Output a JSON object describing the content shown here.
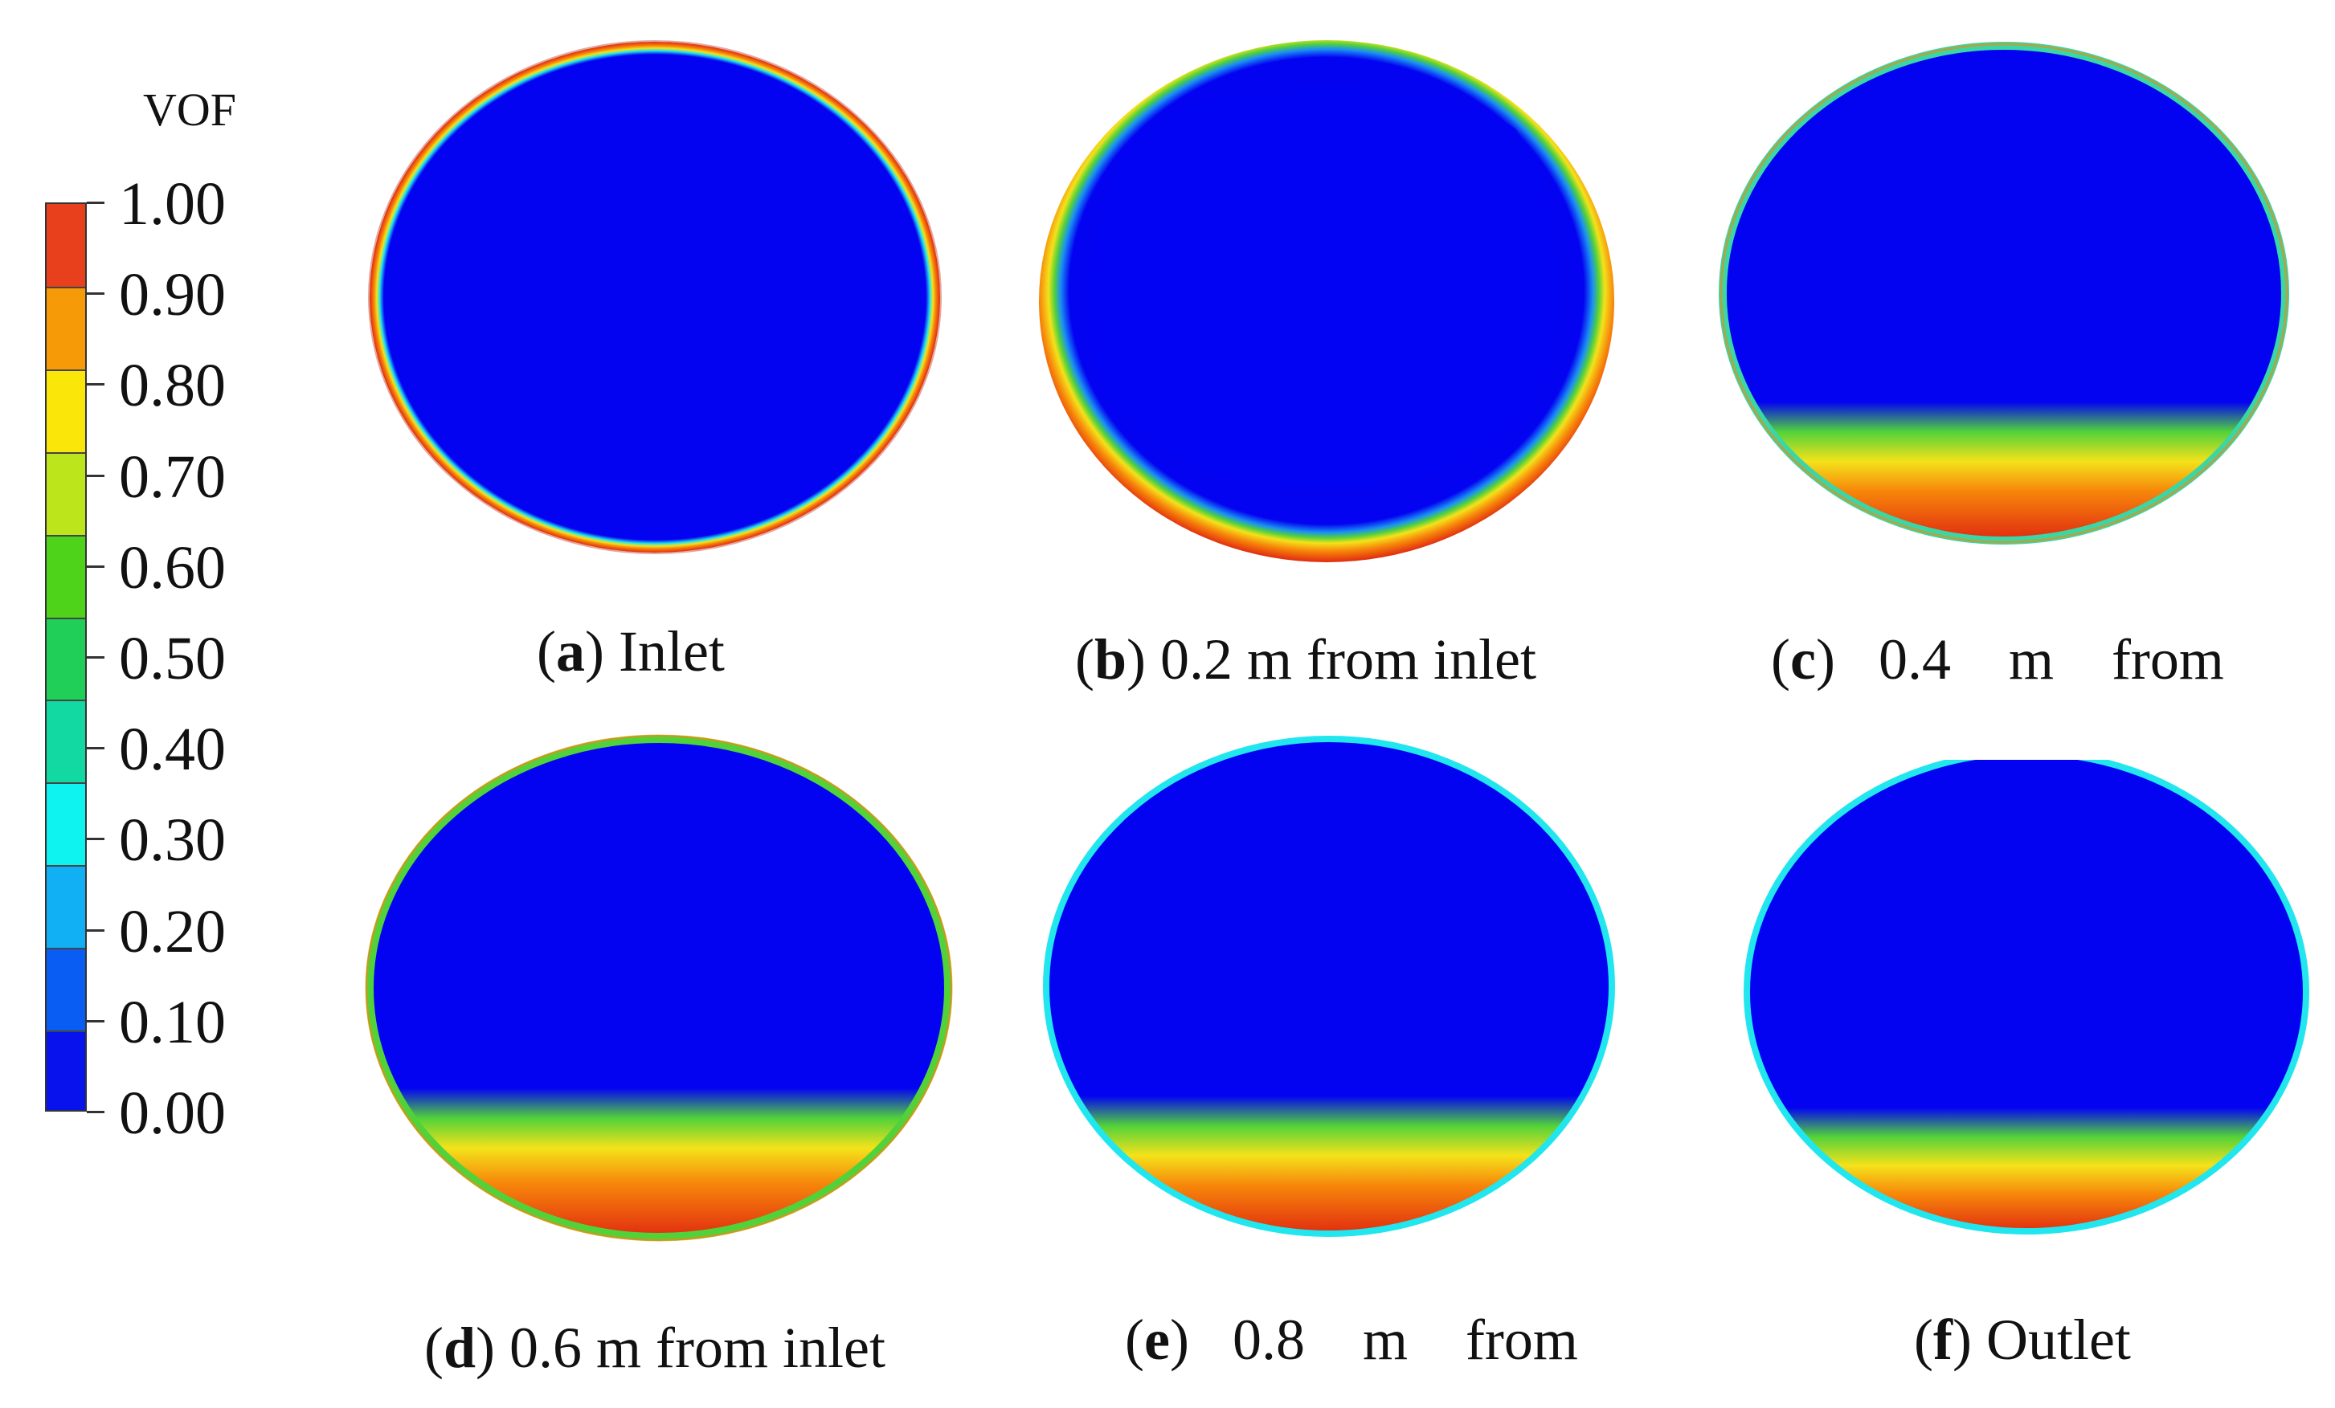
{
  "legend": {
    "title": "VOF",
    "ticks": [
      "1.00",
      "0.90",
      "0.80",
      "0.70",
      "0.60",
      "0.50",
      "0.40",
      "0.30",
      "0.20",
      "0.10",
      "0.00"
    ],
    "colors": [
      "#e8401c",
      "#f79a08",
      "#fbe60a",
      "#bde51c",
      "#4ed31a",
      "#1fcf57",
      "#12d8a2",
      "#0ef3f0",
      "#11b0f5",
      "#0a5df2",
      "#0712ec"
    ]
  },
  "panels": [
    {
      "letter": "a",
      "label": " Inlet"
    },
    {
      "letter": "b",
      "label": " 0.2 m from inlet"
    },
    {
      "letter": "c",
      "label": "   0.4    m    from"
    },
    {
      "letter": "d",
      "label": " 0.6 m from inlet"
    },
    {
      "letter": "e",
      "label": "   0.8    m    from"
    },
    {
      "letter": "f",
      "label": " Outlet"
    }
  ],
  "colors": {
    "core": "#0303f2",
    "wall_red": "#e02a10",
    "orange": "#f7860a",
    "yellow": "#f4e21a",
    "green": "#52d23a",
    "cyan": "#22e6ee",
    "sky": "#1a90f4"
  }
}
